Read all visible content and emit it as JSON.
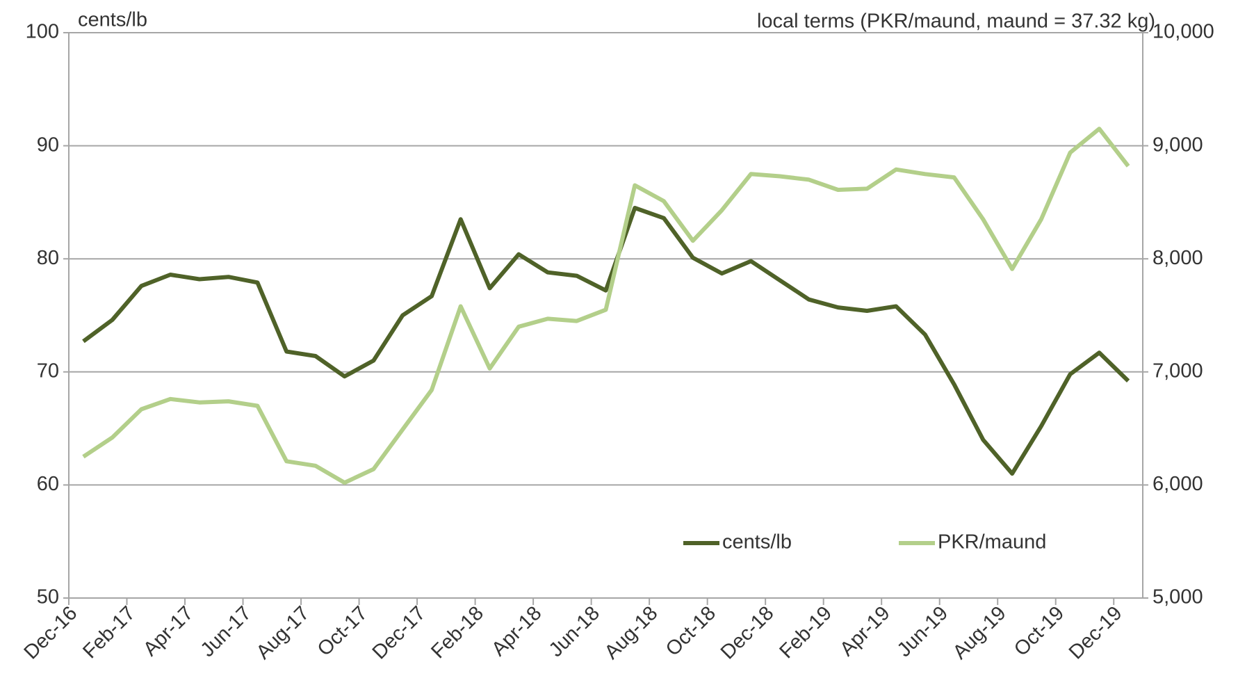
{
  "chart_data": {
    "type": "line",
    "y_label": "cents/lb",
    "y2_label": "local terms (PKR/maund, maund = 37.32 kg)",
    "categories": [
      "Dec-16",
      null,
      "Feb-17",
      null,
      "Apr-17",
      null,
      "Jun-17",
      null,
      "Aug-17",
      null,
      "Oct-17",
      null,
      "Dec-17",
      null,
      "Feb-18",
      null,
      "Apr-18",
      null,
      "Jun-18",
      null,
      "Aug-18",
      null,
      "Oct-18",
      null,
      "Dec-18",
      null,
      "Feb-19",
      null,
      "Apr-19",
      null,
      "Jun-19",
      null,
      "Aug-19",
      null,
      "Oct-19",
      null,
      "Dec-19"
    ],
    "series": [
      {
        "name": "cents/lb",
        "color": "#4f6228",
        "values": [
          72.7,
          74.6,
          77.6,
          78.6,
          78.2,
          78.4,
          77.9,
          71.8,
          71.4,
          69.6,
          71.0,
          75.0,
          76.7,
          83.5,
          77.4,
          80.4,
          78.8,
          78.5,
          77.2,
          84.5,
          83.6,
          80.1,
          78.7,
          79.8,
          78.1,
          76.4,
          75.7,
          75.4,
          75.8,
          73.3,
          68.9,
          64.0,
          61.0,
          65.2,
          69.8,
          71.7,
          69.2
        ]
      },
      {
        "name": "PKR/maund",
        "color": "#b3cf8a",
        "axis": "y2",
        "values": [
          6250,
          6420,
          6670,
          6760,
          6730,
          6740,
          6700,
          6210,
          6170,
          6020,
          6140,
          6490,
          6840,
          7580,
          7030,
          7400,
          7470,
          7450,
          7550,
          8650,
          8510,
          8160,
          8430,
          8750,
          8730,
          8700,
          8610,
          8620,
          8790,
          8750,
          8720,
          8350,
          7910,
          8350,
          8940,
          9150,
          8820
        ]
      }
    ],
    "ylim": [
      50,
      100
    ],
    "yticks": [
      50,
      60,
      70,
      80,
      90,
      100
    ],
    "y2lim": [
      5000,
      10000
    ],
    "y2ticks": [
      {
        "value": 5000,
        "label": "5,000"
      },
      {
        "value": 6000,
        "label": "6,000"
      },
      {
        "value": 7000,
        "label": "7,000"
      },
      {
        "value": 8000,
        "label": "8,000"
      },
      {
        "value": 9000,
        "label": "9,000"
      },
      {
        "value": 10000,
        "label": "10,000"
      }
    ],
    "grid": true
  }
}
